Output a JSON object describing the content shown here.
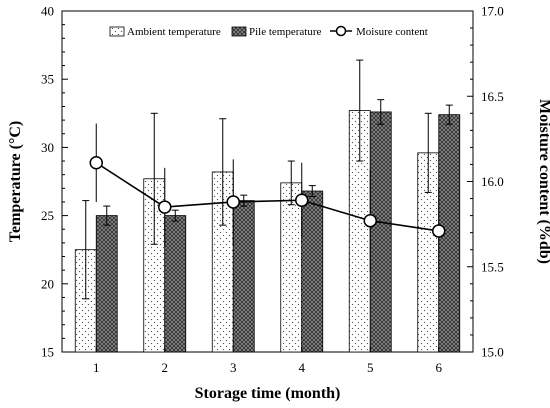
{
  "chart_data": {
    "type": "bar",
    "xlabel": "Storage time (month)",
    "ylabel": "Temperature (°C)",
    "y2label": "Moisture content (%db)",
    "categories": [
      "1",
      "2",
      "3",
      "4",
      "5",
      "6"
    ],
    "ylim": [
      15,
      40
    ],
    "y2lim": [
      15.0,
      17.0
    ],
    "yticks": [
      "15",
      "20",
      "25",
      "30",
      "35",
      "40"
    ],
    "y2ticks": [
      "15.0",
      "15.5",
      "16.0",
      "16.5",
      "17.0"
    ],
    "grid": false,
    "legend_position": "top",
    "series": [
      {
        "name": "Ambient temperature",
        "kind": "bar",
        "axis": "left",
        "pattern": "dots",
        "values": [
          22.5,
          27.7,
          28.2,
          27.4,
          32.7,
          29.6
        ],
        "errors": [
          3.6,
          4.8,
          3.9,
          1.6,
          3.7,
          2.9
        ]
      },
      {
        "name": "Pile temperature",
        "kind": "bar",
        "axis": "left",
        "pattern": "crosshatch",
        "values": [
          25.0,
          25.0,
          26.1,
          26.8,
          32.6,
          32.4
        ],
        "errors": [
          0.7,
          0.4,
          0.4,
          0.4,
          0.9,
          0.7
        ]
      },
      {
        "name": "Moisure content",
        "kind": "line",
        "axis": "right",
        "marker": "open-circle",
        "values": [
          16.11,
          15.85,
          15.88,
          15.89,
          15.77,
          15.71
        ],
        "errors": [
          0.23,
          0.23,
          0.25,
          0.22,
          0.3,
          0.26
        ]
      }
    ]
  }
}
